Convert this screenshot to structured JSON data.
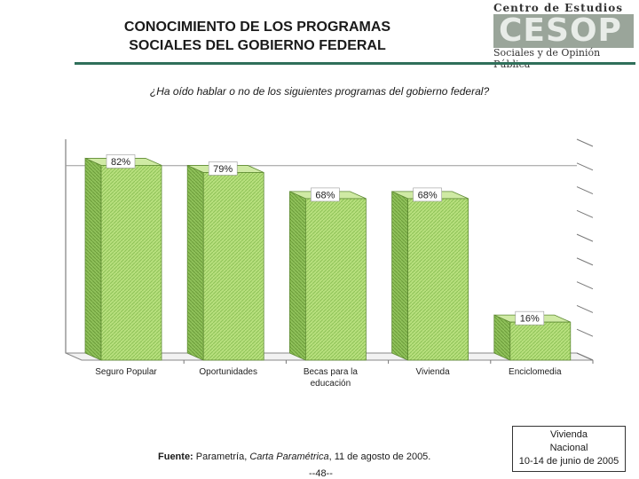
{
  "header": {
    "title_line1": "CONOCIMIENTO DE LOS PROGRAMAS",
    "title_line2": "SOCIALES DEL GOBIERNO FEDERAL",
    "logo_line1": "Centro de Estudios",
    "logo_mark": "CESOP",
    "logo_line3": "Sociales y de Opinión Pública",
    "rule_color": "#2f6f5a"
  },
  "question": "¿Ha oído hablar o no de los siguientes programas del gobierno federal?",
  "chart_data": {
    "type": "bar",
    "style": "3d",
    "categories": [
      "Seguro Popular",
      "Oportunidades",
      "Becas para la educación",
      "Vivienda",
      "Enciclomedia"
    ],
    "category_lines": [
      [
        "Seguro Popular"
      ],
      [
        "Oportunidades"
      ],
      [
        "Becas para la",
        "educación"
      ],
      [
        "Vivienda"
      ],
      [
        "Enciclomedia"
      ]
    ],
    "values": [
      82,
      79,
      68,
      68,
      16
    ],
    "data_labels": [
      "82%",
      "79%",
      "68%",
      "68%",
      "16%"
    ],
    "ylim": [
      0,
      90
    ],
    "grid": true,
    "bar_color": "#a8d870",
    "bar_side_color": "#7fb24a"
  },
  "footer": {
    "source_label": "Fuente:",
    "source_text_1": " Parametría, ",
    "source_italic": "Carta Paramétrica",
    "source_text_2": ", 11 de agosto de 2005.",
    "page": "--48--",
    "box_line1": "Vivienda",
    "box_line2": "Nacional",
    "box_line3": "10-14 de junio de 2005"
  }
}
